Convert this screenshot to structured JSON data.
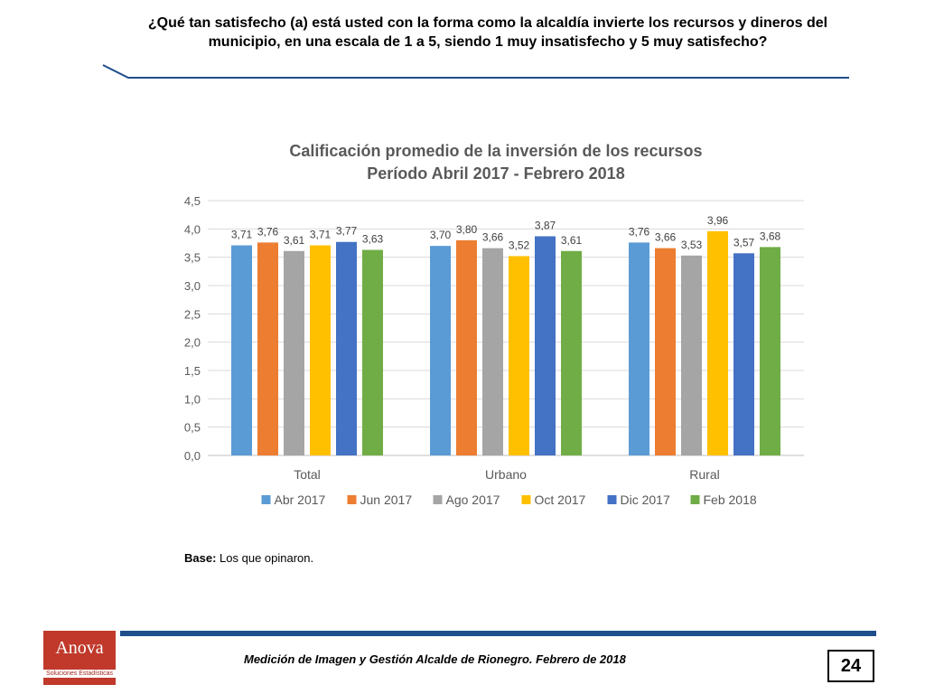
{
  "slide": {
    "question": "¿Qué tan satisfecho (a) está usted con la forma como la alcaldía invierte los recursos y dineros del municipio, en una escala de 1 a 5, siendo 1 muy insatisfecho y 5 muy satisfecho?",
    "base_label": "Base:",
    "base_text": " Los que opinaron.",
    "footer": "Medición de Imagen y Gestión Alcalde de Rionegro. Febrero de 2018",
    "page_number": "24",
    "logo_name": "Anova",
    "logo_sub": "Soluciones Estadísticas",
    "accent_color": "#1f4e8c"
  },
  "chart_data": {
    "type": "bar",
    "title": "Calificación promedio de la inversión de los recursos",
    "subtitle": "Período Abril 2017 - Febrero 2018",
    "categories": [
      "Total",
      "Urbano",
      "Rural"
    ],
    "ylim": [
      0,
      4.5
    ],
    "yticks": [
      "0,0",
      "0,5",
      "1,0",
      "1,5",
      "2,0",
      "2,5",
      "3,0",
      "3,5",
      "4,0",
      "4,5"
    ],
    "grid": true,
    "legend_position": "bottom",
    "series": [
      {
        "name": "Abr 2017",
        "color": "#5b9bd5",
        "values": [
          3.71,
          3.7,
          3.76
        ],
        "labels": [
          "3,71",
          "3,70",
          "3,76"
        ]
      },
      {
        "name": "Jun 2017",
        "color": "#ed7d31",
        "values": [
          3.76,
          3.8,
          3.66
        ],
        "labels": [
          "3,76",
          "3,80",
          "3,66"
        ]
      },
      {
        "name": "Ago 2017",
        "color": "#a5a5a5",
        "values": [
          3.61,
          3.66,
          3.53
        ],
        "labels": [
          "3,61",
          "3,66",
          "3,53"
        ]
      },
      {
        "name": "Oct 2017",
        "color": "#ffc000",
        "values": [
          3.71,
          3.52,
          3.96
        ],
        "labels": [
          "3,71",
          "3,52",
          "3,96"
        ]
      },
      {
        "name": "Dic 2017",
        "color": "#4472c4",
        "values": [
          3.77,
          3.87,
          3.57
        ],
        "labels": [
          "3,77",
          "3,87",
          "3,57"
        ]
      },
      {
        "name": "Feb 2018",
        "color": "#70ad47",
        "values": [
          3.63,
          3.61,
          3.68
        ],
        "labels": [
          "3,63",
          "3,61",
          "3,68"
        ]
      }
    ]
  }
}
